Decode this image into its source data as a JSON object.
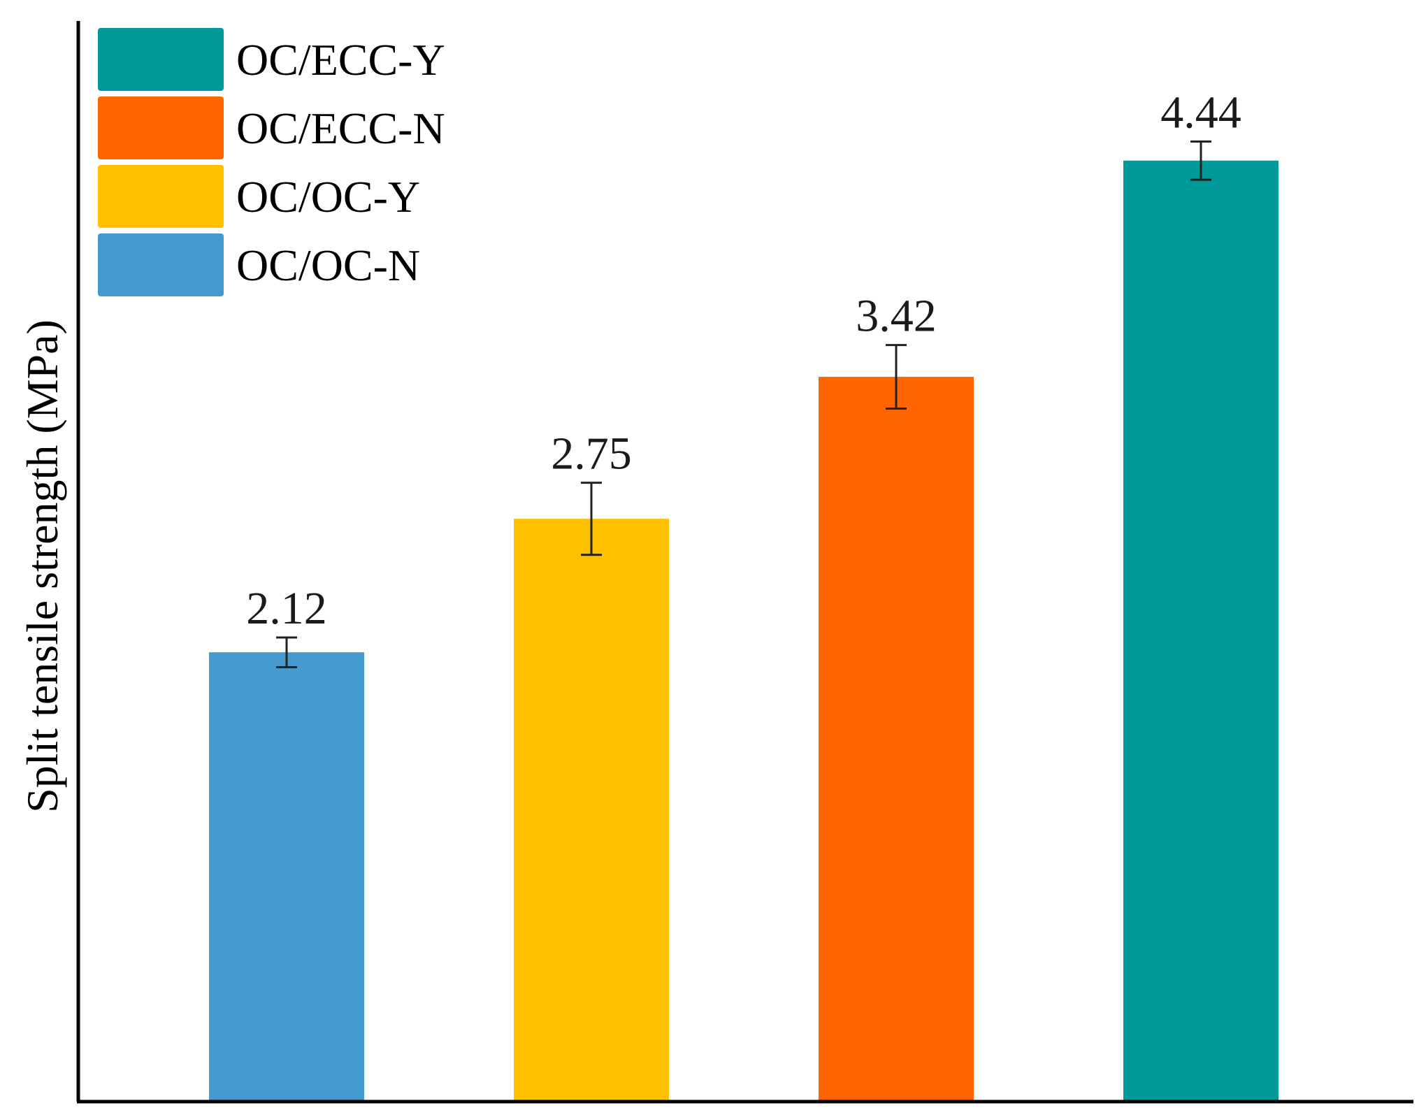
{
  "chart_data": {
    "type": "bar",
    "title": "",
    "xlabel": "",
    "ylabel": "Split tensile strength (MPa)",
    "ylim": [
      0,
      5
    ],
    "grid": false,
    "legend_position": "top-left",
    "legend_order": [
      "OC/ECC-Y",
      "OC/ECC-N",
      "OC/OC-Y",
      "OC/OC-N"
    ],
    "series": [
      {
        "name": "OC/OC-N",
        "value": 2.12,
        "label": "2.12",
        "error": 0.07,
        "color": "#4499CF"
      },
      {
        "name": "OC/OC-Y",
        "value": 2.75,
        "label": "2.75",
        "error": 0.17,
        "color": "#FFC000"
      },
      {
        "name": "OC/ECC-N",
        "value": 3.42,
        "label": "3.42",
        "error": 0.15,
        "color": "#FF6600"
      },
      {
        "name": "OC/ECC-Y",
        "value": 4.44,
        "label": "4.44",
        "error": 0.09,
        "color": "#009999"
      }
    ]
  }
}
